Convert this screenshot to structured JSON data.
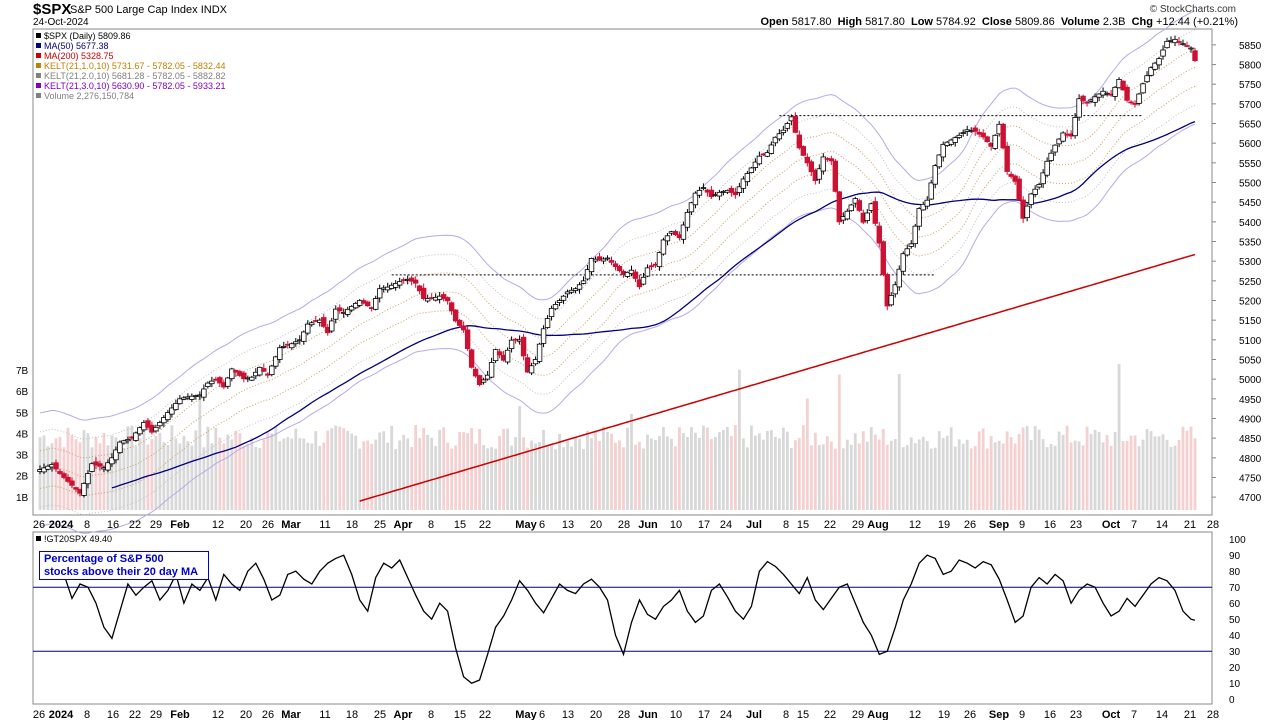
{
  "header": {
    "symbol": "$SPX",
    "name": "S&P 500 Large Cap Index",
    "exchange": "INDX",
    "date": "24-Oct-2024",
    "credit": "© StockCharts.com",
    "open_label": "Open",
    "open": "5817.80",
    "high_label": "High",
    "high": "5817.80",
    "low_label": "Low",
    "low": "5784.92",
    "close_label": "Close",
    "close": "5809.86",
    "volume_label": "Volume",
    "volume": "2.3B",
    "chg_label": "Chg",
    "chg": "+12.44 (+0.21%)"
  },
  "legend": [
    {
      "text": "$SPX (Daily) 5809.86",
      "color": "#000000",
      "icon": "candle-icon"
    },
    {
      "text": "MA(50) 5677.38",
      "color": "#000080",
      "icon": "line-icon"
    },
    {
      "text": "MA(200) 5328.75",
      "color": "#cc0000",
      "icon": "line-icon"
    },
    {
      "text": "KELT(21,1.0,10) 5731.67 - 5782.05 - 5832.44",
      "color": "#c08000",
      "icon": "line-icon"
    },
    {
      "text": "KELT(21,2.0,10) 5681.28 - 5782.05 - 5882.82",
      "color": "#808080",
      "icon": "line-icon"
    },
    {
      "text": "KELT(21,3.0,10) 5630.90 - 5782.05 - 5933.21",
      "color": "#8000c0",
      "icon": "line-icon"
    },
    {
      "text": "Volume 2,276,150,784",
      "color": "#808080",
      "icon": "volume-icon"
    }
  ],
  "indicator": {
    "label": "!GT20SPX 49.40",
    "note_line1": "Percentage of S&P 500",
    "note_line2": "stocks above their 20 day MA"
  },
  "colors": {
    "up": "#000000",
    "down": "#cc1133",
    "ma50": "#000080",
    "ma200": "#cc0000",
    "kelt1": "#c8a060",
    "kelt2": "#c0c0c0",
    "kelt3": "#b8a8e8",
    "vol_up": "#d8d8d8",
    "vol_down": "#f4d0d0"
  },
  "chart_data": [
    {
      "type": "candlestick",
      "title": "$SPX S&P 500 Large Cap Index",
      "x_tick_labels": [
        "26",
        "2024",
        "8",
        "16",
        "22",
        "29",
        "Feb",
        "12",
        "20",
        "26",
        "Mar",
        "11",
        "18",
        "25",
        "Apr",
        "8",
        "15",
        "22",
        "May",
        "6",
        "13",
        "20",
        "28",
        "Jun",
        "10",
        "17",
        "24",
        "Jul",
        "8",
        "15",
        "22",
        "29",
        "Aug",
        "12",
        "19",
        "26",
        "Sep",
        "9",
        "16",
        "23",
        "Oct",
        "7",
        "14",
        "21",
        "28"
      ],
      "y_ticks": [
        4700,
        4750,
        4800,
        4850,
        4900,
        4950,
        5000,
        5050,
        5100,
        5150,
        5200,
        5250,
        5300,
        5350,
        5400,
        5450,
        5500,
        5550,
        5600,
        5650,
        5700,
        5750,
        5800,
        5850
      ],
      "y_range": [
        4680,
        5870
      ],
      "volume_ticks": [
        "1B",
        "2B",
        "3B",
        "4B",
        "5B",
        "6B",
        "7B"
      ],
      "horizontal_levels": [
        5265,
        5670
      ],
      "close_key_points": [
        [
          0,
          4770
        ],
        [
          3,
          4783
        ],
        [
          5,
          4760
        ],
        [
          8,
          4730
        ],
        [
          10,
          4710
        ],
        [
          13,
          4785
        ],
        [
          16,
          4775
        ],
        [
          18,
          4800
        ],
        [
          20,
          4840
        ],
        [
          23,
          4850
        ],
        [
          26,
          4890
        ],
        [
          28,
          4865
        ],
        [
          30,
          4890
        ],
        [
          32,
          4915
        ],
        [
          35,
          4950
        ],
        [
          37,
          4955
        ],
        [
          40,
          4960
        ],
        [
          42,
          4990
        ],
        [
          44,
          5000
        ],
        [
          46,
          4980
        ],
        [
          48,
          5026
        ],
        [
          51,
          5001
        ],
        [
          53,
          5005
        ],
        [
          55,
          5030
        ],
        [
          57,
          5010
        ],
        [
          60,
          5080
        ],
        [
          63,
          5090
        ],
        [
          65,
          5100
        ],
        [
          67,
          5140
        ],
        [
          70,
          5150
        ],
        [
          72,
          5118
        ],
        [
          74,
          5178
        ],
        [
          76,
          5170
        ],
        [
          80,
          5200
        ],
        [
          83,
          5180
        ],
        [
          85,
          5230
        ],
        [
          87,
          5234
        ],
        [
          90,
          5248
        ],
        [
          92,
          5254
        ],
        [
          94,
          5244
        ],
        [
          96,
          5205
        ],
        [
          98,
          5205
        ],
        [
          100,
          5211
        ],
        [
          102,
          5199
        ],
        [
          104,
          5148
        ],
        [
          106,
          5125
        ],
        [
          108,
          5030
        ],
        [
          110,
          4986
        ],
        [
          112,
          5010
        ],
        [
          114,
          5075
        ],
        [
          116,
          5048
        ],
        [
          118,
          5099
        ],
        [
          120,
          5100
        ],
        [
          122,
          5018
        ],
        [
          124,
          5050
        ],
        [
          126,
          5128
        ],
        [
          128,
          5180
        ],
        [
          130,
          5200
        ],
        [
          132,
          5222
        ],
        [
          134,
          5230
        ],
        [
          136,
          5250
        ],
        [
          138,
          5307
        ],
        [
          140,
          5303
        ],
        [
          142,
          5308
        ],
        [
          144,
          5286
        ],
        [
          146,
          5266
        ],
        [
          148,
          5277
        ],
        [
          150,
          5235
        ],
        [
          152,
          5283
        ],
        [
          154,
          5290
        ],
        [
          156,
          5354
        ],
        [
          158,
          5375
        ],
        [
          160,
          5360
        ],
        [
          162,
          5424
        ],
        [
          164,
          5473
        ],
        [
          166,
          5487
        ],
        [
          168,
          5464
        ],
        [
          170,
          5475
        ],
        [
          172,
          5480
        ],
        [
          174,
          5469
        ],
        [
          176,
          5509
        ],
        [
          178,
          5537
        ],
        [
          180,
          5567
        ],
        [
          182,
          5576
        ],
        [
          184,
          5615
        ],
        [
          186,
          5633
        ],
        [
          188,
          5667
        ],
        [
          190,
          5588
        ],
        [
          192,
          5550
        ],
        [
          194,
          5505
        ],
        [
          196,
          5565
        ],
        [
          198,
          5555
        ],
        [
          200,
          5400
        ],
        [
          202,
          5427
        ],
        [
          204,
          5459
        ],
        [
          206,
          5399
        ],
        [
          208,
          5446
        ],
        [
          210,
          5346
        ],
        [
          212,
          5186
        ],
        [
          214,
          5240
        ],
        [
          216,
          5319
        ],
        [
          218,
          5344
        ],
        [
          220,
          5434
        ],
        [
          222,
          5455
        ],
        [
          224,
          5543
        ],
        [
          226,
          5597
        ],
        [
          228,
          5608
        ],
        [
          230,
          5620
        ],
        [
          232,
          5634
        ],
        [
          234,
          5630
        ],
        [
          236,
          5616
        ],
        [
          238,
          5592
        ],
        [
          240,
          5648
        ],
        [
          242,
          5528
        ],
        [
          244,
          5503
        ],
        [
          246,
          5409
        ],
        [
          248,
          5471
        ],
        [
          250,
          5495
        ],
        [
          252,
          5554
        ],
        [
          254,
          5595
        ],
        [
          256,
          5626
        ],
        [
          258,
          5618
        ],
        [
          260,
          5713
        ],
        [
          262,
          5702
        ],
        [
          264,
          5718
        ],
        [
          266,
          5732
        ],
        [
          268,
          5722
        ],
        [
          270,
          5762
        ],
        [
          272,
          5709
        ],
        [
          274,
          5699
        ],
        [
          276,
          5751
        ],
        [
          278,
          5792
        ],
        [
          280,
          5815
        ],
        [
          282,
          5859
        ],
        [
          284,
          5864
        ],
        [
          286,
          5853
        ],
        [
          288,
          5842
        ],
        [
          289,
          5810
        ]
      ],
      "indicator_series": {
        "name": "!GT20SPX",
        "y_ticks": [
          0,
          10,
          20,
          30,
          40,
          50,
          60,
          70,
          80,
          90,
          100
        ],
        "y_range": [
          -3,
          102
        ],
        "reference_lines": [
          30,
          70
        ],
        "last_value": 49.4,
        "key_points": [
          [
            0,
            88
          ],
          [
            2,
            82
          ],
          [
            4,
            75
          ],
          [
            6,
            78
          ],
          [
            8,
            63
          ],
          [
            10,
            72
          ],
          [
            12,
            70
          ],
          [
            14,
            60
          ],
          [
            16,
            45
          ],
          [
            18,
            38
          ],
          [
            20,
            55
          ],
          [
            22,
            72
          ],
          [
            24,
            65
          ],
          [
            26,
            70
          ],
          [
            28,
            74
          ],
          [
            30,
            62
          ],
          [
            32,
            68
          ],
          [
            34,
            78
          ],
          [
            36,
            60
          ],
          [
            38,
            72
          ],
          [
            40,
            68
          ],
          [
            42,
            76
          ],
          [
            44,
            62
          ],
          [
            46,
            78
          ],
          [
            48,
            72
          ],
          [
            50,
            68
          ],
          [
            52,
            80
          ],
          [
            54,
            85
          ],
          [
            56,
            75
          ],
          [
            58,
            62
          ],
          [
            60,
            65
          ],
          [
            62,
            78
          ],
          [
            64,
            80
          ],
          [
            66,
            75
          ],
          [
            68,
            72
          ],
          [
            70,
            80
          ],
          [
            72,
            85
          ],
          [
            74,
            88
          ],
          [
            76,
            90
          ],
          [
            78,
            78
          ],
          [
            80,
            62
          ],
          [
            82,
            55
          ],
          [
            84,
            76
          ],
          [
            86,
            85
          ],
          [
            88,
            82
          ],
          [
            90,
            87
          ],
          [
            92,
            76
          ],
          [
            94,
            65
          ],
          [
            96,
            55
          ],
          [
            98,
            50
          ],
          [
            100,
            60
          ],
          [
            102,
            55
          ],
          [
            104,
            32
          ],
          [
            106,
            14
          ],
          [
            108,
            10
          ],
          [
            110,
            12
          ],
          [
            112,
            28
          ],
          [
            114,
            45
          ],
          [
            116,
            52
          ],
          [
            118,
            62
          ],
          [
            120,
            74
          ],
          [
            122,
            68
          ],
          [
            124,
            60
          ],
          [
            126,
            54
          ],
          [
            128,
            63
          ],
          [
            130,
            72
          ],
          [
            132,
            68
          ],
          [
            134,
            66
          ],
          [
            136,
            72
          ],
          [
            138,
            75
          ],
          [
            140,
            70
          ],
          [
            142,
            62
          ],
          [
            144,
            40
          ],
          [
            146,
            28
          ],
          [
            148,
            48
          ],
          [
            150,
            62
          ],
          [
            152,
            53
          ],
          [
            154,
            50
          ],
          [
            156,
            58
          ],
          [
            158,
            62
          ],
          [
            160,
            68
          ],
          [
            162,
            55
          ],
          [
            164,
            48
          ],
          [
            166,
            52
          ],
          [
            168,
            68
          ],
          [
            170,
            72
          ],
          [
            172,
            64
          ],
          [
            174,
            55
          ],
          [
            176,
            50
          ],
          [
            178,
            58
          ],
          [
            180,
            80
          ],
          [
            182,
            86
          ],
          [
            184,
            83
          ],
          [
            186,
            78
          ],
          [
            188,
            72
          ],
          [
            190,
            66
          ],
          [
            192,
            76
          ],
          [
            194,
            62
          ],
          [
            196,
            56
          ],
          [
            198,
            63
          ],
          [
            200,
            70
          ],
          [
            202,
            72
          ],
          [
            204,
            60
          ],
          [
            206,
            48
          ],
          [
            208,
            40
          ],
          [
            210,
            28
          ],
          [
            212,
            30
          ],
          [
            214,
            45
          ],
          [
            216,
            62
          ],
          [
            218,
            72
          ],
          [
            220,
            85
          ],
          [
            222,
            90
          ],
          [
            224,
            88
          ],
          [
            226,
            78
          ],
          [
            228,
            80
          ],
          [
            230,
            87
          ],
          [
            232,
            85
          ],
          [
            234,
            82
          ],
          [
            236,
            86
          ],
          [
            238,
            84
          ],
          [
            240,
            75
          ],
          [
            242,
            62
          ],
          [
            244,
            48
          ],
          [
            246,
            52
          ],
          [
            248,
            70
          ],
          [
            250,
            76
          ],
          [
            252,
            72
          ],
          [
            254,
            78
          ],
          [
            256,
            74
          ],
          [
            258,
            60
          ],
          [
            260,
            68
          ],
          [
            262,
            72
          ],
          [
            264,
            70
          ],
          [
            266,
            60
          ],
          [
            268,
            52
          ],
          [
            270,
            55
          ],
          [
            272,
            63
          ],
          [
            274,
            58
          ],
          [
            276,
            65
          ],
          [
            278,
            72
          ],
          [
            280,
            76
          ],
          [
            282,
            74
          ],
          [
            284,
            68
          ],
          [
            286,
            55
          ],
          [
            288,
            50
          ],
          [
            289,
            49.4
          ]
        ]
      }
    }
  ]
}
